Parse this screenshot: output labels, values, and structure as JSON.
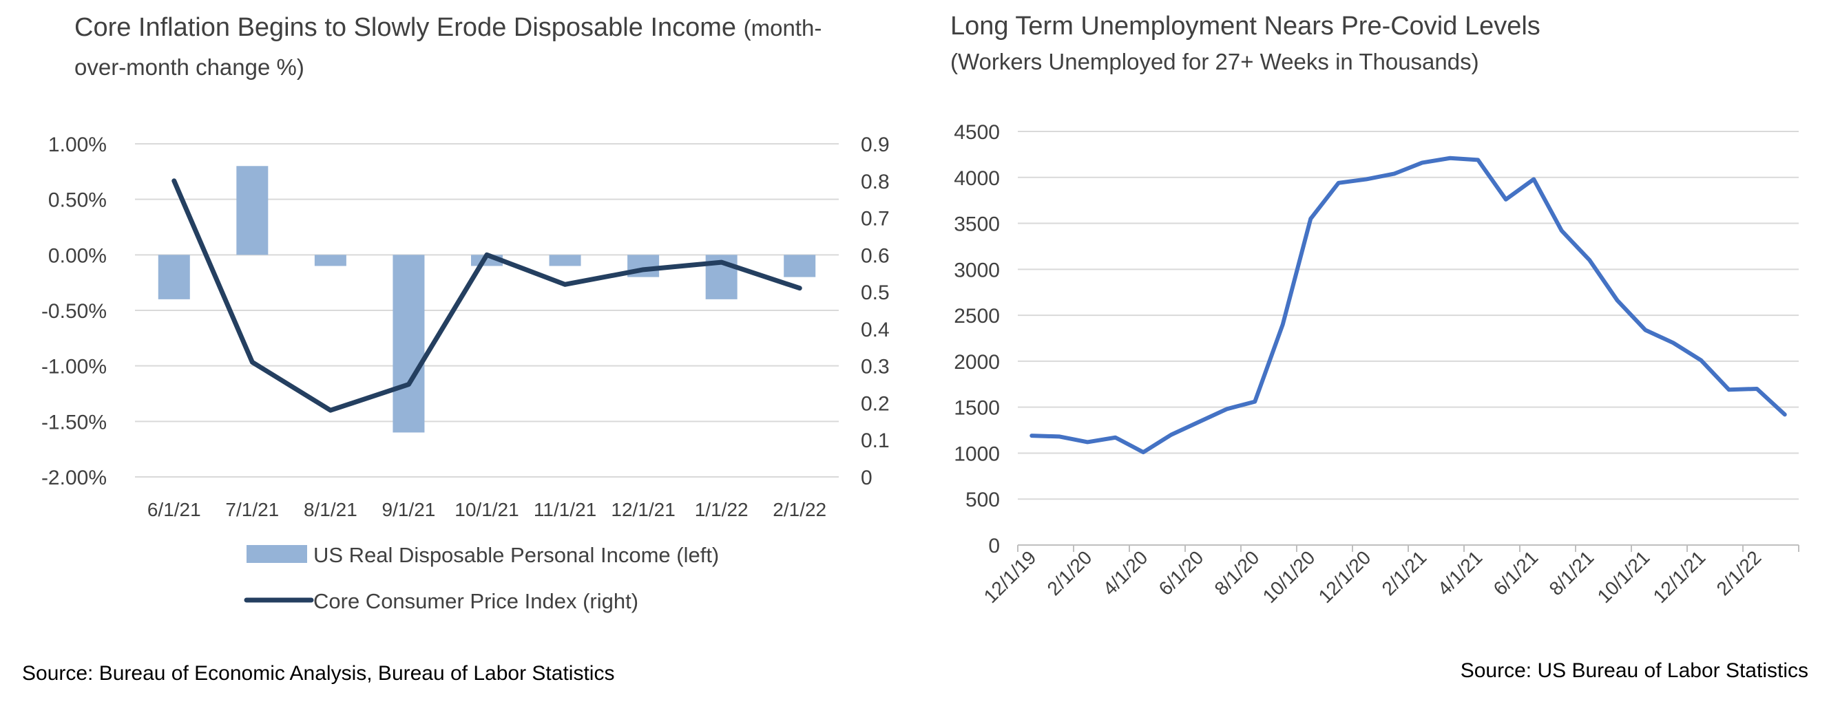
{
  "chart_data": [
    {
      "type": "bar",
      "title": "Core Inflation Begins to Slowly Erode Disposable Income",
      "subtitle": "(month-over-month change %)",
      "categories": [
        "6/1/21",
        "7/1/21",
        "8/1/21",
        "9/1/21",
        "10/1/21",
        "11/1/21",
        "12/1/21",
        "1/1/22",
        "2/1/22"
      ],
      "series": [
        {
          "name": "US Real Disposable Personal Income (left)",
          "type": "bar",
          "axis": "left",
          "values": [
            -0.4,
            0.8,
            -0.1,
            -1.6,
            -0.1,
            -0.1,
            -0.2,
            -0.4,
            -0.2
          ]
        },
        {
          "name": "Core Consumer Price Index (right)",
          "type": "line",
          "axis": "right",
          "values": [
            0.8,
            0.31,
            0.18,
            0.25,
            0.6,
            0.52,
            0.56,
            0.58,
            0.51
          ]
        }
      ],
      "yleft": {
        "ylim": [
          -2.0,
          1.0
        ],
        "ticks": [
          1.0,
          0.5,
          0.0,
          -0.5,
          -1.0,
          -1.5,
          -2.0
        ],
        "tick_labels": [
          "1.00%",
          "0.50%",
          "0.00%",
          "-0.50%",
          "-1.00%",
          "-1.50%",
          "-2.00%"
        ]
      },
      "yright": {
        "ylim": [
          0,
          0.9
        ],
        "ticks": [
          0.9,
          0.8,
          0.7,
          0.6,
          0.5,
          0.4,
          0.3,
          0.2,
          0.1,
          0
        ],
        "tick_labels": [
          "0.9",
          "0.8",
          "0.7",
          "0.6",
          "0.5",
          "0.4",
          "0.3",
          "0.2",
          "0.1",
          "0"
        ]
      },
      "grid": true,
      "legend": "bottom",
      "colors": {
        "bar": "#95b3d7",
        "line": "#243f60"
      },
      "source": "Source: Bureau of Economic Analysis, Bureau of Labor Statistics"
    },
    {
      "type": "line",
      "title": "Long Term Unemployment Nears Pre-Covid Levels",
      "subtitle": "(Workers Unemployed for 27+ Weeks in Thousands)",
      "x_tick_labels": [
        "12/1/19",
        "2/1/20",
        "4/1/20",
        "6/1/20",
        "8/1/20",
        "10/1/20",
        "12/1/20",
        "2/1/21",
        "4/1/21",
        "6/1/21",
        "8/1/21",
        "10/1/21",
        "12/1/21",
        "2/1/22"
      ],
      "x": [
        "12/1/19",
        "1/1/20",
        "2/1/20",
        "3/1/20",
        "4/1/20",
        "5/1/20",
        "6/1/20",
        "7/1/20",
        "8/1/20",
        "9/1/20",
        "10/1/20",
        "11/1/20",
        "12/1/20",
        "1/1/21",
        "2/1/21",
        "3/1/21",
        "4/1/21",
        "5/1/21",
        "6/1/21",
        "7/1/21",
        "8/1/21",
        "9/1/21",
        "10/1/21",
        "11/1/21",
        "12/1/21",
        "1/1/22",
        "2/1/22",
        "3/1/22"
      ],
      "series": [
        {
          "values": [
            1190,
            1180,
            1120,
            1170,
            1010,
            1200,
            1340,
            1480,
            1560,
            2400,
            3550,
            3940,
            3980,
            4040,
            4160,
            4210,
            4190,
            3760,
            3980,
            3420,
            3100,
            2660,
            2340,
            2200,
            2010,
            1690,
            1700,
            1420
          ]
        }
      ],
      "ylim": [
        0,
        4500
      ],
      "ticks": [
        4500,
        4000,
        3500,
        3000,
        2500,
        2000,
        1500,
        1000,
        500,
        0
      ],
      "tick_labels": [
        "4500",
        "4000",
        "3500",
        "3000",
        "2500",
        "2000",
        "1500",
        "1000",
        "500",
        "0"
      ],
      "grid": true,
      "colors": {
        "line": "#4472c4"
      },
      "source": "Source: US Bureau of Labor Statistics"
    }
  ]
}
